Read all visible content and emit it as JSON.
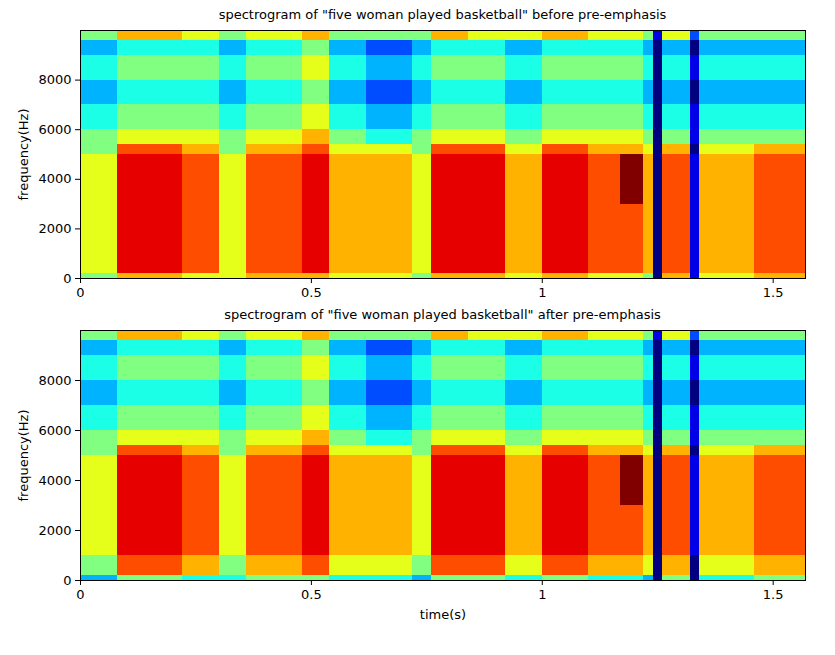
{
  "chart_data": [
    {
      "type": "heatmap",
      "title": "spectrogram of \"five woman played basketball\" before pre-emphasis",
      "y_label": "frequency(Hz)",
      "xlim": [
        0,
        1.57
      ],
      "xticks": [
        0,
        0.5,
        1,
        1.5
      ],
      "ylim": [
        0,
        10000
      ],
      "yticks": [
        0,
        2000,
        4000,
        6000,
        8000
      ],
      "color": "jet",
      "xbins": [
        0,
        0.08,
        0.15,
        0.22,
        0.3,
        0.36,
        0.42,
        0.48,
        0.54,
        0.62,
        0.72,
        0.76,
        0.84,
        0.92,
        1.0,
        1.05,
        1.1,
        1.17,
        1.22,
        1.24,
        1.26,
        1.32,
        1.34,
        1.4,
        1.46,
        1.52,
        1.57
      ],
      "ybins": [
        0,
        200,
        1000,
        2000,
        3000,
        4000,
        5000,
        5400,
        6000,
        7000,
        8000,
        9000,
        9600,
        10000
      ],
      "values": [
        [
          5,
          7,
          7,
          6,
          6,
          7,
          7,
          7,
          6,
          6,
          5,
          7,
          7,
          6,
          7,
          7,
          6,
          6,
          5,
          0,
          7,
          1,
          6,
          6,
          7,
          7
        ],
        [
          6,
          9,
          9,
          8,
          6,
          8,
          8,
          9,
          7,
          7,
          6,
          9,
          9,
          7,
          9,
          9,
          8,
          8,
          7,
          0,
          8,
          1,
          7,
          7,
          8,
          8
        ],
        [
          6,
          9,
          9,
          8,
          6,
          8,
          8,
          9,
          7,
          7,
          6,
          9,
          9,
          7,
          9,
          9,
          8,
          8,
          7,
          0,
          8,
          1,
          7,
          7,
          8,
          8
        ],
        [
          6,
          9,
          9,
          8,
          6,
          8,
          8,
          9,
          7,
          7,
          6,
          9,
          9,
          7,
          9,
          9,
          8,
          8,
          7,
          0,
          8,
          1,
          7,
          7,
          8,
          8
        ],
        [
          6,
          9,
          9,
          8,
          6,
          8,
          8,
          9,
          7,
          7,
          6,
          9,
          9,
          7,
          9,
          9,
          8,
          10,
          7,
          0,
          8,
          1,
          7,
          7,
          8,
          8
        ],
        [
          6,
          9,
          9,
          8,
          6,
          8,
          8,
          9,
          7,
          7,
          6,
          9,
          9,
          7,
          9,
          9,
          8,
          10,
          7,
          0,
          8,
          1,
          7,
          7,
          8,
          8
        ],
        [
          5,
          8,
          8,
          7,
          5,
          7,
          7,
          8,
          6,
          6,
          5,
          8,
          8,
          6,
          8,
          8,
          7,
          7,
          6,
          0,
          7,
          0,
          6,
          6,
          7,
          7
        ],
        [
          5,
          6,
          6,
          6,
          5,
          6,
          6,
          7,
          5,
          4,
          5,
          6,
          6,
          5,
          6,
          6,
          6,
          6,
          5,
          0,
          5,
          1,
          5,
          5,
          5,
          5
        ],
        [
          4,
          5,
          5,
          5,
          4,
          5,
          5,
          6,
          4,
          3,
          4,
          5,
          5,
          4,
          5,
          5,
          5,
          5,
          4,
          0,
          4,
          1,
          4,
          4,
          4,
          4
        ],
        [
          3,
          4,
          4,
          4,
          3,
          4,
          4,
          5,
          3,
          2,
          3,
          4,
          4,
          3,
          4,
          4,
          4,
          4,
          3,
          0,
          3,
          0,
          3,
          3,
          3,
          3
        ],
        [
          4,
          5,
          5,
          5,
          4,
          5,
          5,
          6,
          4,
          3,
          4,
          5,
          5,
          4,
          5,
          5,
          5,
          5,
          4,
          0,
          4,
          1,
          4,
          4,
          4,
          4
        ],
        [
          3,
          4,
          4,
          4,
          3,
          4,
          4,
          5,
          3,
          2,
          3,
          4,
          4,
          3,
          4,
          4,
          4,
          4,
          3,
          0,
          3,
          0,
          3,
          3,
          3,
          3
        ],
        [
          5,
          7,
          7,
          6,
          5,
          6,
          6,
          7,
          5,
          5,
          5,
          7,
          6,
          6,
          7,
          7,
          6,
          6,
          5,
          1,
          6,
          2,
          5,
          5,
          5,
          5
        ]
      ]
    },
    {
      "type": "heatmap",
      "title": "spectrogram of \"five woman played basketball\" after pre-emphasis",
      "x_label": "time(s)",
      "y_label": "frequency(Hz)",
      "xlim": [
        0,
        1.57
      ],
      "xticks": [
        0,
        0.5,
        1,
        1.5
      ],
      "ylim": [
        0,
        10000
      ],
      "yticks": [
        0,
        2000,
        4000,
        6000,
        8000
      ],
      "color": "jet",
      "xbins": [
        0,
        0.08,
        0.15,
        0.22,
        0.3,
        0.36,
        0.42,
        0.48,
        0.54,
        0.62,
        0.72,
        0.76,
        0.84,
        0.92,
        1.0,
        1.05,
        1.1,
        1.17,
        1.22,
        1.24,
        1.26,
        1.32,
        1.34,
        1.4,
        1.46,
        1.52,
        1.57
      ],
      "ybins": [
        0,
        200,
        1000,
        2000,
        3000,
        4000,
        5000,
        5400,
        6000,
        7000,
        8000,
        9000,
        9600,
        10000
      ],
      "values": [
        [
          3,
          5,
          5,
          4,
          4,
          5,
          5,
          5,
          4,
          4,
          3,
          5,
          5,
          4,
          5,
          5,
          4,
          4,
          3,
          0,
          5,
          0,
          4,
          4,
          5,
          5
        ],
        [
          5,
          8,
          8,
          7,
          5,
          7,
          7,
          8,
          6,
          6,
          5,
          8,
          8,
          6,
          8,
          8,
          7,
          7,
          6,
          0,
          7,
          0,
          6,
          6,
          7,
          7
        ],
        [
          6,
          9,
          9,
          8,
          6,
          8,
          8,
          9,
          7,
          7,
          6,
          9,
          9,
          7,
          9,
          9,
          8,
          8,
          7,
          0,
          8,
          1,
          7,
          7,
          8,
          8
        ],
        [
          6,
          9,
          9,
          8,
          6,
          8,
          8,
          9,
          7,
          7,
          6,
          9,
          9,
          7,
          9,
          9,
          8,
          8,
          7,
          0,
          8,
          1,
          7,
          7,
          8,
          8
        ],
        [
          6,
          9,
          9,
          8,
          6,
          8,
          8,
          9,
          7,
          7,
          6,
          9,
          9,
          7,
          9,
          9,
          8,
          10,
          7,
          0,
          8,
          1,
          7,
          7,
          8,
          8
        ],
        [
          6,
          9,
          9,
          8,
          6,
          8,
          8,
          9,
          7,
          7,
          6,
          9,
          9,
          7,
          9,
          9,
          8,
          10,
          7,
          0,
          8,
          1,
          7,
          7,
          8,
          8
        ],
        [
          5,
          8,
          8,
          7,
          5,
          7,
          7,
          8,
          6,
          6,
          5,
          8,
          8,
          6,
          8,
          8,
          7,
          7,
          6,
          0,
          7,
          0,
          6,
          6,
          7,
          7
        ],
        [
          5,
          6,
          6,
          6,
          5,
          6,
          6,
          7,
          5,
          4,
          5,
          6,
          6,
          5,
          6,
          6,
          6,
          6,
          5,
          0,
          5,
          1,
          5,
          5,
          5,
          5
        ],
        [
          4,
          5,
          5,
          5,
          4,
          5,
          5,
          6,
          4,
          3,
          4,
          5,
          5,
          4,
          5,
          5,
          5,
          5,
          4,
          0,
          4,
          1,
          4,
          4,
          4,
          4
        ],
        [
          3,
          4,
          4,
          4,
          3,
          4,
          4,
          5,
          3,
          2,
          3,
          4,
          4,
          3,
          4,
          4,
          4,
          4,
          3,
          0,
          3,
          0,
          3,
          3,
          3,
          3
        ],
        [
          4,
          5,
          5,
          5,
          4,
          5,
          5,
          6,
          4,
          3,
          4,
          5,
          5,
          4,
          5,
          5,
          5,
          5,
          4,
          0,
          4,
          1,
          4,
          4,
          4,
          4
        ],
        [
          3,
          4,
          4,
          4,
          3,
          4,
          4,
          5,
          3,
          2,
          3,
          4,
          4,
          3,
          4,
          4,
          4,
          4,
          3,
          0,
          3,
          0,
          3,
          3,
          3,
          3
        ],
        [
          5,
          7,
          7,
          6,
          5,
          6,
          6,
          7,
          5,
          5,
          5,
          7,
          6,
          6,
          7,
          7,
          6,
          6,
          5,
          1,
          6,
          2,
          5,
          5,
          5,
          5
        ]
      ]
    }
  ]
}
